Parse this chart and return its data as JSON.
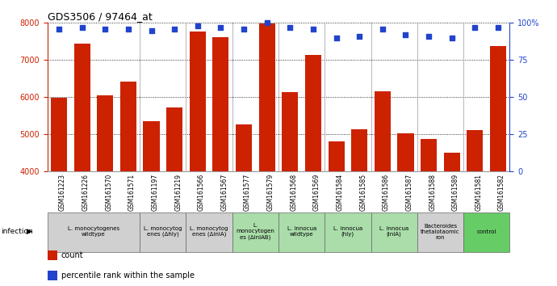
{
  "title": "GDS3506 / 97464_at",
  "samples": [
    "GSM161223",
    "GSM161226",
    "GSM161570",
    "GSM161571",
    "GSM161197",
    "GSM161219",
    "GSM161566",
    "GSM161567",
    "GSM161577",
    "GSM161579",
    "GSM161568",
    "GSM161569",
    "GSM161584",
    "GSM161585",
    "GSM161586",
    "GSM161587",
    "GSM161588",
    "GSM161589",
    "GSM161581",
    "GSM161582"
  ],
  "counts": [
    5980,
    7450,
    6050,
    6430,
    5350,
    5730,
    7760,
    7620,
    5270,
    7980,
    6130,
    7130,
    4810,
    5130,
    6170,
    5020,
    4880,
    4500,
    5120,
    7380
  ],
  "percentile_ranks": [
    96,
    97,
    96,
    96,
    95,
    96,
    98,
    97,
    96,
    100,
    97,
    96,
    90,
    91,
    96,
    92,
    91,
    90,
    97,
    97
  ],
  "groups": [
    {
      "label": "L. monocytogenes\nwildtype",
      "start": 0,
      "end": 4,
      "color": "#d0d0d0"
    },
    {
      "label": "L. monocytog\nenes (Δhly)",
      "start": 4,
      "end": 6,
      "color": "#d0d0d0"
    },
    {
      "label": "L. monocytog\nenes (ΔinlA)",
      "start": 6,
      "end": 8,
      "color": "#d0d0d0"
    },
    {
      "label": "L.\nmonocytogen\nes (ΔinlAB)",
      "start": 8,
      "end": 10,
      "color": "#aaddaa"
    },
    {
      "label": "L. innocua\nwildtype",
      "start": 10,
      "end": 12,
      "color": "#aaddaa"
    },
    {
      "label": "L. innocua\n(hly)",
      "start": 12,
      "end": 14,
      "color": "#aaddaa"
    },
    {
      "label": "L. innocua\n(inlA)",
      "start": 14,
      "end": 16,
      "color": "#aaddaa"
    },
    {
      "label": "Bacteroides\nthetaiotaomic\nron",
      "start": 16,
      "end": 18,
      "color": "#d0d0d0"
    },
    {
      "label": "control",
      "start": 18,
      "end": 20,
      "color": "#66cc66"
    }
  ],
  "ylim_left": [
    4000,
    8000
  ],
  "ylim_right": [
    0,
    100
  ],
  "bar_color": "#cc2200",
  "dot_color": "#2244cc",
  "legend_count_label": "count",
  "legend_pct_label": "percentile rank within the sample",
  "infection_label": "infection"
}
